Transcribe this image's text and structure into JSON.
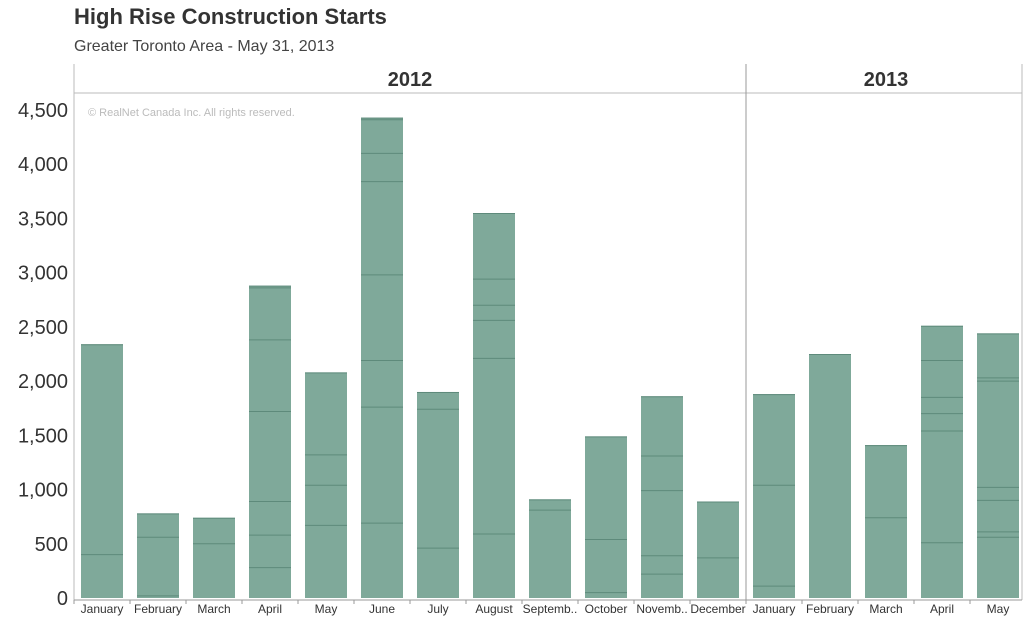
{
  "title": "High Rise Construction Starts",
  "subtitle": "Greater Toronto Area - May 31, 2013",
  "copyright": "© RealNet Canada Inc.  All rights reserved.",
  "colors": {
    "bar": "#7fa99a",
    "segment_line": "#5e8a7b",
    "axis": "#999999",
    "grid_border": "#bbbbbb"
  },
  "chart_data": {
    "type": "bar",
    "stacked": true,
    "ylim": [
      0,
      4500
    ],
    "yticks": [
      0,
      500,
      1000,
      1500,
      2000,
      2500,
      3000,
      3500,
      4000,
      4500
    ],
    "ytick_labels": [
      "0",
      "500",
      "1,000",
      "1,500",
      "2,000",
      "2,500",
      "3,000",
      "3,500",
      "4,000",
      "4,500"
    ],
    "panels": [
      {
        "year": "2012",
        "categories": [
          "January",
          "February",
          "March",
          "April",
          "May",
          "June",
          "July",
          "August",
          "Septemb..",
          "October",
          "Novemb..",
          "December"
        ],
        "values": [
          2340,
          780,
          740,
          2880,
          2080,
          4430,
          1900,
          3550,
          910,
          1490,
          1860,
          890
        ],
        "segment_boundaries": [
          [
            400
          ],
          [
            20,
            560
          ],
          [
            500
          ],
          [
            280,
            580,
            890,
            1720,
            2380,
            2860
          ],
          [
            670,
            1040,
            1320
          ],
          [
            690,
            1760,
            2190,
            2980,
            3840,
            4100,
            4410
          ],
          [
            460,
            1740
          ],
          [
            590,
            2210,
            2560,
            2700,
            2940
          ],
          [
            810
          ],
          [
            50,
            540
          ],
          [
            220,
            390,
            990,
            1310
          ],
          [
            370
          ]
        ]
      },
      {
        "year": "2013",
        "categories": [
          "January",
          "February",
          "March",
          "April",
          "May"
        ],
        "values": [
          1880,
          2250,
          1410,
          2510,
          2440
        ],
        "segment_boundaries": [
          [
            110,
            1040
          ],
          [],
          [
            740
          ],
          [
            510,
            1540,
            1700,
            1850,
            2190
          ],
          [
            560,
            610,
            900,
            1020,
            2000,
            2030
          ]
        ]
      }
    ]
  }
}
